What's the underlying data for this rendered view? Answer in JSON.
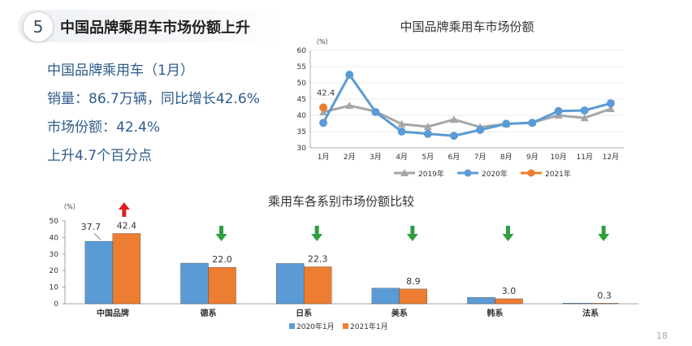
{
  "slide": {
    "number": "5",
    "title": "中国品牌乘用车市场份额上升",
    "info_lines": [
      "中国品牌乘用车（1月）",
      "销量：86.7万辆，同比增长42.6%",
      "市场份额：42.4%",
      "上升4.7个百分点"
    ],
    "page_number": "18"
  },
  "chart_data": [
    {
      "type": "line",
      "title": "中国品牌乘用车市场份额",
      "ylabel": "（%）",
      "ylim": [
        30,
        60
      ],
      "yticks": [
        30,
        35,
        40,
        45,
        50,
        55,
        60
      ],
      "categories": [
        "1月",
        "2月",
        "3月",
        "4月",
        "5月",
        "6月",
        "7月",
        "8月",
        "9月",
        "10月",
        "11月",
        "12月"
      ],
      "series": [
        {
          "name": "2019年",
          "color": "#a6a6a6",
          "marker": "triangle",
          "values": [
            41.0,
            43.0,
            41.2,
            37.3,
            36.5,
            38.7,
            36.4,
            37.3,
            37.8,
            40.0,
            39.2,
            42.0
          ]
        },
        {
          "name": "2020年",
          "color": "#5b9bd5",
          "marker": "circle",
          "values": [
            37.7,
            52.5,
            41.0,
            35.0,
            34.3,
            33.7,
            35.5,
            37.4,
            37.7,
            41.3,
            41.5,
            43.7
          ]
        },
        {
          "name": "2021年",
          "color": "#ed7d31",
          "marker": "circle",
          "values": [
            42.4,
            null,
            null,
            null,
            null,
            null,
            null,
            null,
            null,
            null,
            null,
            null
          ]
        }
      ],
      "annotations": [
        {
          "text": "42.4"
        }
      ]
    },
    {
      "type": "bar",
      "title": "乘用车各系别市场份额比较",
      "ylabel": "（%）",
      "ylim": [
        0,
        50
      ],
      "yticks": [
        0,
        10,
        20,
        30,
        40,
        50
      ],
      "categories": [
        "中国品牌",
        "德系",
        "日系",
        "美系",
        "韩系",
        "法系"
      ],
      "series": [
        {
          "name": "2020年1月",
          "color": "#5b9bd5",
          "values": [
            37.7,
            24.5,
            24.3,
            9.4,
            3.8,
            0.4
          ]
        },
        {
          "name": "2021年1月",
          "color": "#ed7d31",
          "values": [
            42.4,
            22.0,
            22.3,
            8.9,
            3.0,
            0.3
          ]
        }
      ],
      "data_labels": [
        "37.7",
        "42.4",
        "22.0",
        "22.3",
        "8.9",
        "3.0",
        "0.3"
      ],
      "trend_arrows": [
        {
          "category": "中国品牌",
          "direction": "up",
          "color": "#e02020"
        },
        {
          "category": "德系",
          "direction": "down",
          "color": "#2e9e3e"
        },
        {
          "category": "日系",
          "direction": "down",
          "color": "#2e9e3e"
        },
        {
          "category": "美系",
          "direction": "down",
          "color": "#2e9e3e"
        },
        {
          "category": "韩系",
          "direction": "down",
          "color": "#2e9e3e"
        },
        {
          "category": "法系",
          "direction": "down",
          "color": "#2e9e3e"
        }
      ]
    }
  ]
}
